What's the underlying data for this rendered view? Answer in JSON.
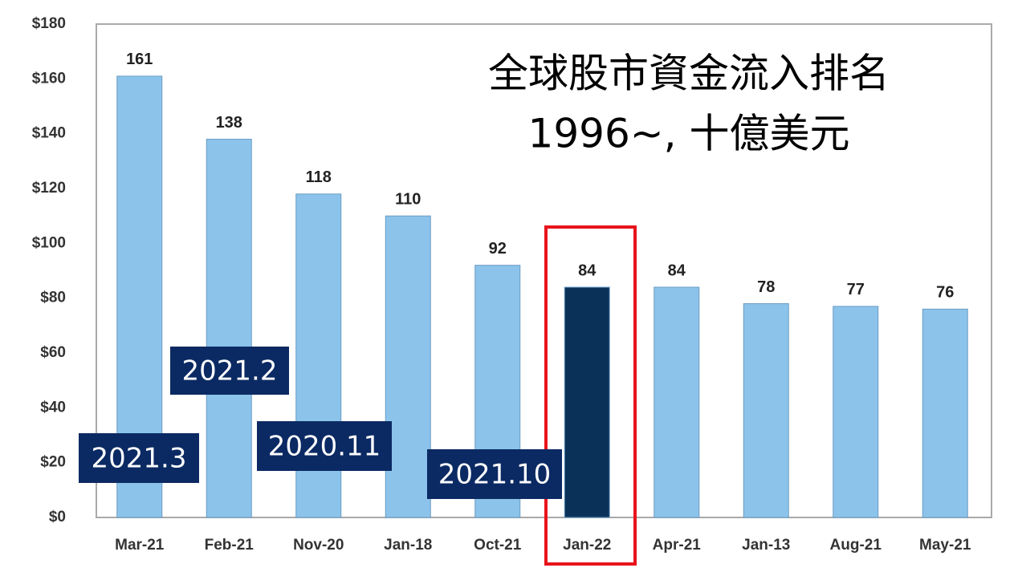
{
  "chart_data": {
    "type": "bar",
    "title": [
      "全球股市資金流入排名",
      "1996~, 十億美元"
    ],
    "categories": [
      "Mar-21",
      "Feb-21",
      "Nov-20",
      "Jan-18",
      "Oct-21",
      "Jan-22",
      "Apr-21",
      "Jan-13",
      "Aug-21",
      "May-21"
    ],
    "values": [
      161,
      138,
      118,
      110,
      92,
      84,
      84,
      78,
      77,
      76
    ],
    "colors": [
      "#8cc3ea",
      "#8cc3ea",
      "#8cc3ea",
      "#8cc3ea",
      "#8cc3ea",
      "#0a3259",
      "#8cc3ea",
      "#8cc3ea",
      "#8cc3ea",
      "#8cc3ea"
    ],
    "ylim": [
      0,
      180
    ],
    "yticks": [
      {
        "value": 0,
        "label": "$0"
      },
      {
        "value": 20,
        "label": "$20"
      },
      {
        "value": 40,
        "label": "$40"
      },
      {
        "value": 60,
        "label": "$60"
      },
      {
        "value": 80,
        "label": "$80"
      },
      {
        "value": 100,
        "label": "$100"
      },
      {
        "value": 120,
        "label": "$120"
      },
      {
        "value": 140,
        "label": "$140"
      },
      {
        "value": 160,
        "label": "$160"
      },
      {
        "value": 180,
        "label": "$180"
      }
    ],
    "grid": false,
    "annotations": [
      "2021.2",
      "2021.3",
      "2020.11",
      "2021.10"
    ]
  }
}
